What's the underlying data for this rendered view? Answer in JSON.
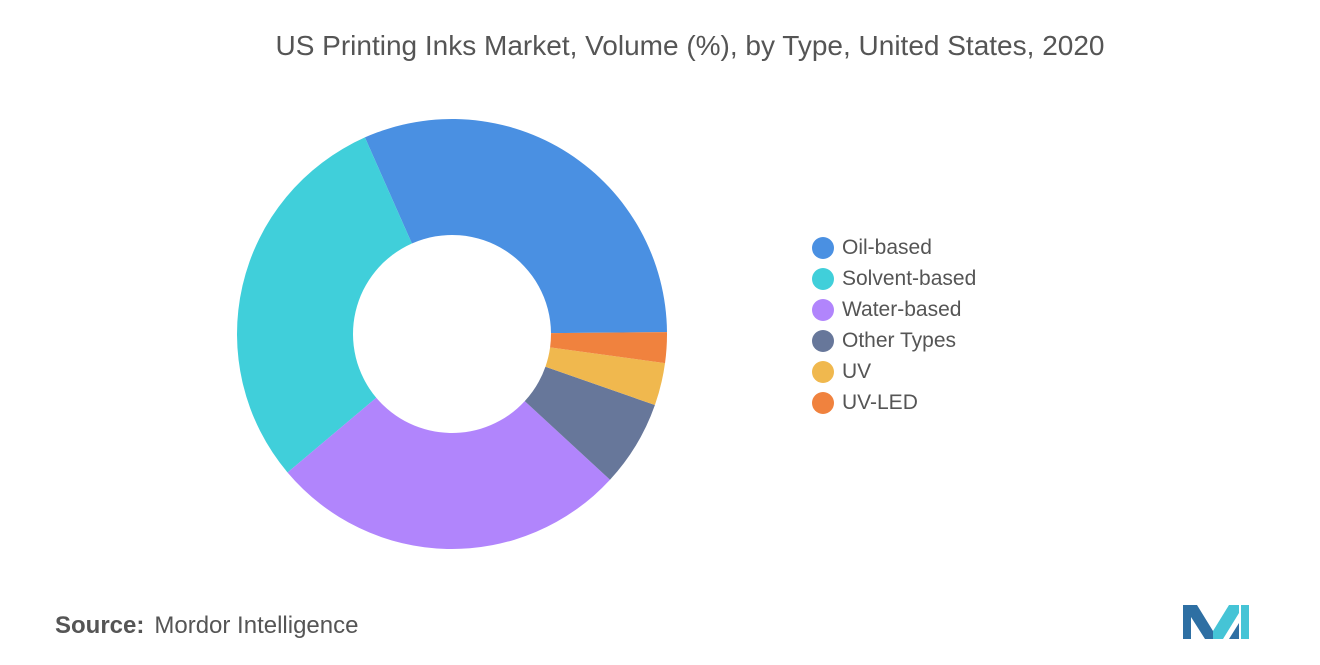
{
  "source": {
    "label": "Source:",
    "value": "Mordor Intelligence"
  },
  "chart_data": {
    "type": "pie",
    "donut": true,
    "title": "US Printing Inks Market, Volume (%), by Type, United States, 2020",
    "legend_position": "right",
    "slices": [
      {
        "name": "Oil-based",
        "value": 31.5,
        "color": "#4A90E2"
      },
      {
        "name": "Solvent-based",
        "value": 29.5,
        "color": "#40CFDA"
      },
      {
        "name": "Water-based",
        "value": 27.0,
        "color": "#B185FC"
      },
      {
        "name": "Other Types",
        "value": 6.5,
        "color": "#67779A"
      },
      {
        "name": "UV",
        "value": 3.2,
        "color": "#F0B84E"
      },
      {
        "name": "UV-LED",
        "value": 2.3,
        "color": "#F0823E"
      }
    ]
  }
}
